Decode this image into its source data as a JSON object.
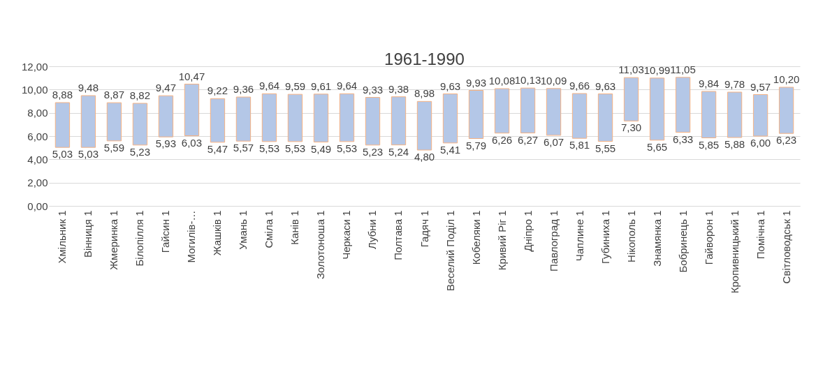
{
  "chart_data": {
    "type": "bar",
    "title": "1961-1990",
    "categories": [
      "Хмільник 1",
      "Вінниця 1",
      "Жмеринка 1",
      "Білопілля 1",
      "Гайсин 1",
      "Могилів-…",
      "Жашків 1",
      "Умань 1",
      "Сміла 1",
      "Канів 1",
      "Золотоноша 1",
      "Черкаси 1",
      "Лубни 1",
      "Полтава 1",
      "Гадяч 1",
      "Веселий Поділ 1",
      "Кобеляки 1",
      "Кривий Ріг 1",
      "Дніпро 1",
      "Павлоград 1",
      "Чаплине 1",
      "Губиниха 1",
      "Нікополь 1",
      "Знамянка 1",
      "Бобринець 1",
      "Гайворон 1",
      "Кропивницький 1",
      "Помічна 1",
      "Світловодськ 1"
    ],
    "base": [
      5.03,
      5.03,
      5.59,
      5.23,
      5.93,
      6.03,
      5.47,
      5.57,
      5.53,
      5.53,
      5.49,
      5.53,
      5.23,
      5.24,
      4.8,
      5.41,
      5.79,
      6.26,
      6.27,
      6.07,
      5.81,
      5.55,
      7.3,
      5.65,
      6.33,
      5.85,
      5.88,
      6.0,
      6.23
    ],
    "values": [
      3.85,
      4.45,
      3.28,
      3.59,
      3.54,
      4.44,
      3.75,
      3.79,
      4.11,
      4.06,
      4.12,
      4.11,
      4.1,
      4.14,
      4.18,
      4.22,
      4.14,
      3.82,
      3.86,
      4.02,
      3.85,
      4.08,
      3.73,
      5.34,
      4.72,
      3.99,
      3.9,
      3.57,
      3.97
    ],
    "color": "#b4c7e7",
    "ylim": [
      0,
      12
    ],
    "yticks": [
      {
        "value": 0,
        "label": "0,00"
      },
      {
        "value": 2,
        "label": "2,00"
      },
      {
        "value": 4,
        "label": "4,00"
      },
      {
        "value": 6,
        "label": "6,00"
      },
      {
        "value": 8,
        "label": "8,00"
      },
      {
        "value": 10,
        "label": "10,00"
      },
      {
        "value": 12,
        "label": "12,00"
      }
    ],
    "grid": "y",
    "annotations": [
      {
        "text": "8,88",
        "x": "Хмільник 1",
        "y": 8.88
      },
      {
        "text": "5,03",
        "x": "Хмільник 1",
        "y": 5.03
      },
      {
        "text": "9,48",
        "x": "Вінниця 1",
        "y": 9.48
      },
      {
        "text": "5,03",
        "x": "Вінниця 1",
        "y": 5.03
      },
      {
        "text": "8,87",
        "x": "Жмеринка 1",
        "y": 8.87
      },
      {
        "text": "5,59",
        "x": "Жмеринка 1",
        "y": 5.59
      },
      {
        "text": "8,82",
        "x": "Білопілля 1",
        "y": 8.82
      },
      {
        "text": "5,23",
        "x": "Білопілля 1",
        "y": 5.23
      },
      {
        "text": "9,47",
        "x": "Гайсин 1",
        "y": 9.47
      },
      {
        "text": "5,93",
        "x": "Гайсин 1",
        "y": 5.93
      },
      {
        "text": "10,47",
        "x": "Могилів-…",
        "y": 10.47
      },
      {
        "text": "6,03",
        "x": "Могилів-…",
        "y": 6.03
      },
      {
        "text": "9,22",
        "x": "Жашків 1",
        "y": 9.22
      },
      {
        "text": "5,47",
        "x": "Жашків 1",
        "y": 5.47
      },
      {
        "text": "9,36",
        "x": "Умань 1",
        "y": 9.36
      },
      {
        "text": "5,57",
        "x": "Умань 1",
        "y": 5.57
      },
      {
        "text": "9,64",
        "x": "Сміла 1",
        "y": 9.64
      },
      {
        "text": "5,53",
        "x": "Сміла 1",
        "y": 5.53
      },
      {
        "text": "9,59",
        "x": "Канів 1",
        "y": 9.59
      },
      {
        "text": "5,53",
        "x": "Канів 1",
        "y": 5.53
      },
      {
        "text": "9,61",
        "x": "Золотоноша 1",
        "y": 9.61
      },
      {
        "text": "5,49",
        "x": "Золотоноша 1",
        "y": 5.49
      },
      {
        "text": "9,64",
        "x": "Черкаси 1",
        "y": 9.64
      },
      {
        "text": "5,53",
        "x": "Черкаси 1",
        "y": 5.53
      },
      {
        "text": "9,33",
        "x": "Лубни 1",
        "y": 9.33
      },
      {
        "text": "5,23",
        "x": "Лубни 1",
        "y": 5.23
      },
      {
        "text": "9,38",
        "x": "Полтава 1",
        "y": 9.38
      },
      {
        "text": "5,24",
        "x": "Полтава 1",
        "y": 5.24
      },
      {
        "text": "8,98",
        "x": "Гадяч 1",
        "y": 8.98
      },
      {
        "text": "4,80",
        "x": "Гадяч 1",
        "y": 4.8
      },
      {
        "text": "9,63",
        "x": "Веселий Поділ 1",
        "y": 9.63
      },
      {
        "text": "5,41",
        "x": "Веселий Поділ 1",
        "y": 5.41
      },
      {
        "text": "9,93",
        "x": "Кобеляки 1",
        "y": 9.93
      },
      {
        "text": "5,79",
        "x": "Кобеляки 1",
        "y": 5.79
      },
      {
        "text": "10,08",
        "x": "Кривий Ріг 1",
        "y": 10.08
      },
      {
        "text": "6,26",
        "x": "Кривий Ріг 1",
        "y": 6.26
      },
      {
        "text": "10,13",
        "x": "Дніпро 1",
        "y": 10.13
      },
      {
        "text": "6,27",
        "x": "Дніпро 1",
        "y": 6.27
      },
      {
        "text": "10,09",
        "x": "Павлоград 1",
        "y": 10.09
      },
      {
        "text": "6,07",
        "x": "Павлоград 1",
        "y": 6.07
      },
      {
        "text": "9,66",
        "x": "Чаплине 1",
        "y": 9.66
      },
      {
        "text": "5,81",
        "x": "Чаплине 1",
        "y": 5.81
      },
      {
        "text": "9,63",
        "x": "Губиниха 1",
        "y": 9.63
      },
      {
        "text": "5,55",
        "x": "Губиниха 1",
        "y": 5.55
      },
      {
        "text": "11,03",
        "x": "Нікополь 1",
        "y": 11.03
      },
      {
        "text": "7,30",
        "x": "Нікополь 1",
        "y": 7.3
      },
      {
        "text": "10,99",
        "x": "Знамянка 1",
        "y": 10.99
      },
      {
        "text": "5,65",
        "x": "Знамянка 1",
        "y": 5.65
      },
      {
        "text": "11,05",
        "x": "Бобринець 1",
        "y": 11.05
      },
      {
        "text": "6,33",
        "x": "Бобринець 1",
        "y": 6.33
      },
      {
        "text": "9,84",
        "x": "Гайворон 1",
        "y": 9.84
      },
      {
        "text": "5,85",
        "x": "Гайворон 1",
        "y": 5.85
      },
      {
        "text": "9,78",
        "x": "Кропивницький 1",
        "y": 9.78
      },
      {
        "text": "5,88",
        "x": "Кропивницький 1",
        "y": 5.88
      },
      {
        "text": "9,57",
        "x": "Помічна 1",
        "y": 9.57
      },
      {
        "text": "6,00",
        "x": "Помічна 1",
        "y": 6.0
      },
      {
        "text": "10,20",
        "x": "Світловодськ 1",
        "y": 10.2
      },
      {
        "text": "6,23",
        "x": "Світловодськ 1",
        "y": 6.23
      }
    ]
  }
}
